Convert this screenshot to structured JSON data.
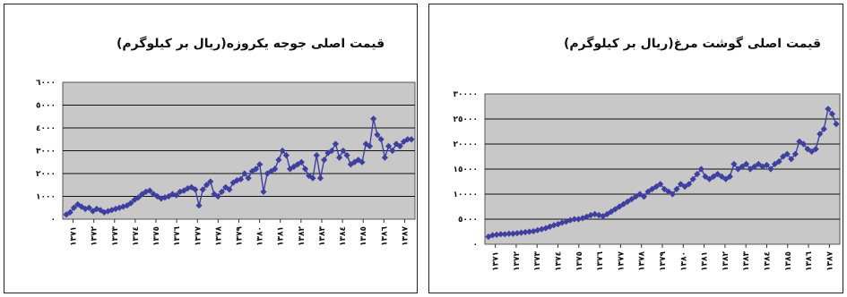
{
  "chart_data": [
    {
      "type": "line",
      "title": "قیمت اصلی جوجه یکروزه(ریال بر کیلوگرم)",
      "xlabel": "",
      "ylabel": "",
      "ylim": [
        0,
        6000
      ],
      "yticks": [
        0,
        1000,
        2000,
        3000,
        4000,
        5000,
        6000
      ],
      "ytick_labels": [
        "٠",
        "١٠٠٠",
        "٢٠٠٠",
        "٣٠٠٠",
        "٤٠٠٠",
        "٥٠٠٠",
        "٦٠٠٠"
      ],
      "xtick_labels": [
        "١٣٧١",
        "١٣٧٢",
        "١٣٧٣",
        "١٣٧٤",
        "١٣٧٥",
        "١٣٧٦",
        "١٣٧٧",
        "١٣٧٨",
        "١٣٧٩",
        "١٣٨٠",
        "١٣٨١",
        "١٣٨٢",
        "١٣٨٣",
        "١٣٨٤",
        "١٣٨٥",
        "١٣٨٦",
        "١٣٨٧"
      ],
      "grid": true,
      "color": "#3f3f9f",
      "plot_background": "#c8c8c8",
      "values": [
        200,
        300,
        500,
        650,
        550,
        450,
        500,
        350,
        450,
        400,
        300,
        350,
        400,
        450,
        500,
        550,
        600,
        700,
        850,
        950,
        1100,
        1200,
        1250,
        1100,
        1000,
        900,
        950,
        1000,
        1100,
        1050,
        1200,
        1250,
        1350,
        1400,
        1300,
        600,
        1300,
        1500,
        1650,
        1100,
        1000,
        1200,
        1400,
        1300,
        1600,
        1700,
        1750,
        2000,
        1800,
        2100,
        2200,
        2400,
        1200,
        2000,
        2100,
        2200,
        2600,
        3000,
        2800,
        2200,
        2300,
        2400,
        2500,
        2200,
        1900,
        1800,
        2800,
        1800,
        2600,
        2900,
        3000,
        3300,
        2700,
        3000,
        2800,
        2400,
        2500,
        2600,
        2500,
        3300,
        3200,
        4400,
        3700,
        3500,
        2700,
        3200,
        3000,
        3300,
        3200,
        3400,
        3500,
        3500
      ]
    },
    {
      "type": "line",
      "title": "قیمت اصلی گوشت مرغ(ریال بر کیلوگرم)",
      "xlabel": "",
      "ylabel": "",
      "ylim": [
        0,
        30000
      ],
      "yticks": [
        0,
        5000,
        10000,
        15000,
        20000,
        25000,
        30000
      ],
      "ytick_labels": [
        "٠",
        "٥٠٠٠",
        "١٠٠٠٠",
        "١٥٠٠٠",
        "٢٠٠٠٠",
        "٢٥٠٠٠",
        "٣٠٠٠٠"
      ],
      "xtick_labels": [
        "١٣٧١",
        "١٣٧٢",
        "١٣٧٣",
        "١٣٧٤",
        "١٣٧٥",
        "١٣٧٦",
        "١٣٧٧",
        "١٣٧٨",
        "١٣٧٩",
        "١٣٨٠",
        "١٣٨١",
        "١٣٨٢",
        "١٣٨٣",
        "١٣٨٤",
        "١٣٨٥",
        "١٣٨٦",
        "١٣٨٧"
      ],
      "grid": true,
      "color": "#3f3f9f",
      "plot_background": "#c8c8c8",
      "values": [
        1500,
        1800,
        1900,
        2000,
        2000,
        2100,
        2100,
        2200,
        2300,
        2400,
        2500,
        2600,
        2800,
        3000,
        3200,
        3500,
        3800,
        4000,
        4300,
        4500,
        4800,
        5000,
        5000,
        5200,
        5500,
        5800,
        6000,
        5800,
        5600,
        6000,
        6500,
        7000,
        7500,
        8000,
        8500,
        9000,
        9500,
        10000,
        9500,
        10500,
        11000,
        11500,
        12000,
        11000,
        10500,
        10000,
        11000,
        12000,
        11500,
        12000,
        13000,
        14000,
        15000,
        13500,
        13000,
        13500,
        14000,
        13500,
        13000,
        13500,
        16000,
        15000,
        15500,
        16000,
        15000,
        15500,
        16000,
        15500,
        15800,
        15000,
        16000,
        16500,
        17500,
        18000,
        17000,
        18000,
        20500,
        20000,
        19000,
        18500,
        19000,
        22000,
        23000,
        27000,
        26000,
        24000
      ]
    }
  ]
}
